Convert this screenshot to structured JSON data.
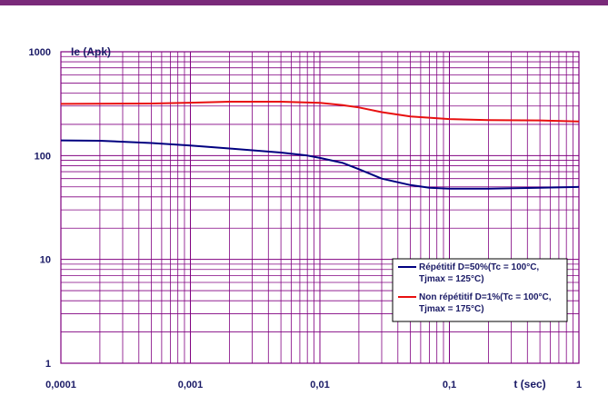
{
  "chart_data": {
    "type": "line",
    "xscale": "log",
    "yscale": "log",
    "xlim": [
      0.0001,
      1
    ],
    "ylim": [
      1,
      1000
    ],
    "grid": true,
    "xlabel": "t (sec)",
    "ylabel": "Ie (Apk)",
    "x_tick_labels": [
      "0,0001",
      "0,001",
      "0,01",
      "0,1",
      "1"
    ],
    "y_tick_labels": [
      "1",
      "10",
      "100",
      "1000"
    ],
    "legend_position": "lower-right",
    "colors": {
      "grid": "#800080",
      "axis": "#800080",
      "text": "#1a1a66"
    },
    "series": [
      {
        "name_lines": [
          "Répétitif D=50%(Tc = 100°C,",
          "Tjmax = 125°C)"
        ],
        "color": "#000080",
        "x": [
          0.0001,
          0.0002,
          0.0005,
          0.001,
          0.002,
          0.005,
          0.008,
          0.01,
          0.015,
          0.02,
          0.03,
          0.05,
          0.07,
          0.1,
          0.2,
          0.5,
          1
        ],
        "y": [
          140,
          139,
          132,
          125,
          117,
          107,
          100,
          95,
          85,
          74,
          60,
          52,
          49,
          48,
          48,
          49,
          50
        ]
      },
      {
        "name_lines": [
          "Non répétitif D=1%(Tc = 100°C,",
          "Tjmax = 175°C)"
        ],
        "color": "#e81010",
        "x": [
          0.0001,
          0.0005,
          0.001,
          0.002,
          0.005,
          0.01,
          0.015,
          0.02,
          0.03,
          0.05,
          0.1,
          0.2,
          0.5,
          1
        ],
        "y": [
          315,
          317,
          323,
          330,
          330,
          322,
          306,
          291,
          262,
          238,
          225,
          220,
          218,
          213
        ]
      }
    ]
  }
}
